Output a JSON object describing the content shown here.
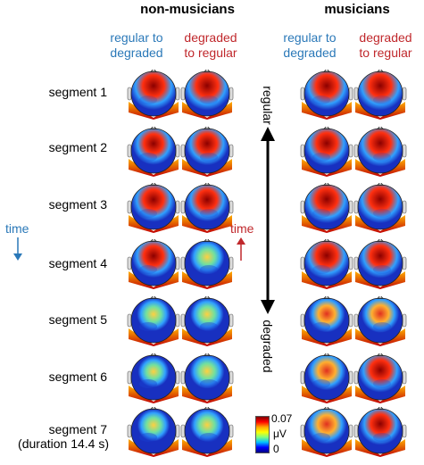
{
  "groups": {
    "left": "non-musicians",
    "right": "musicians"
  },
  "columns": {
    "regular_to_degraded": "regular to\ndegraded",
    "degraded_to_regular": "degraded\nto regular"
  },
  "segments": [
    "segment 1",
    "segment 2",
    "segment 3",
    "segment 4",
    "segment 5",
    "segment 6",
    "segment 7"
  ],
  "segment7_note": "(duration 14.4 s)",
  "axis": {
    "top": "regular",
    "bottom": "degraded"
  },
  "time_label": "time",
  "colorbar": {
    "max": "0.07",
    "unit": "μV",
    "min": "0"
  },
  "colors": {
    "blue_text": "#2a78b8",
    "red_text": "#c0282c"
  }
}
